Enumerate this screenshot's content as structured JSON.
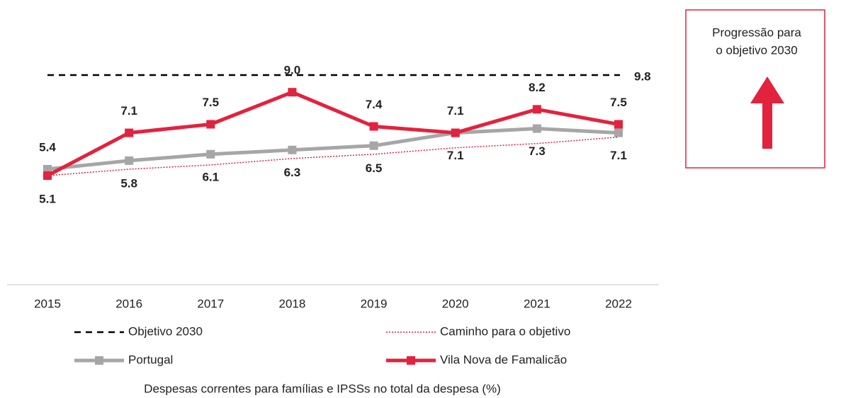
{
  "chart_data": {
    "type": "line",
    "categories": [
      "2015",
      "2016",
      "2017",
      "2018",
      "2019",
      "2020",
      "2021",
      "2022"
    ],
    "series": [
      {
        "name": "Portugal",
        "color": "#a6a6a6",
        "values": [
          5.4,
          5.8,
          6.1,
          6.3,
          6.5,
          7.1,
          7.3,
          7.1
        ]
      },
      {
        "name": "Vila Nova de Famalicão",
        "color": "#e3223e",
        "values": [
          5.1,
          7.1,
          7.5,
          9.0,
          7.4,
          7.1,
          8.2,
          7.5
        ],
        "value_labels": [
          "5.1",
          "7.1",
          "7.5",
          "9.0",
          "7.4",
          "7.1",
          "8.2",
          "7.5"
        ]
      }
    ],
    "target": {
      "name": "Objetivo 2030",
      "value": 9.8,
      "color": "#000000"
    },
    "path": {
      "name": "Caminho para o objetivo",
      "color": "#e3223e",
      "values": [
        5.1,
        5.4,
        5.6,
        5.9,
        6.1,
        6.4,
        6.6,
        6.9
      ]
    },
    "ylim": [
      0,
      12
    ],
    "caption": "Despesas correntes para famílias e IPSSs no total da despesa (%)"
  },
  "progress_box": {
    "text_lines": [
      "Progressão para",
      "o objetivo 2030"
    ]
  }
}
